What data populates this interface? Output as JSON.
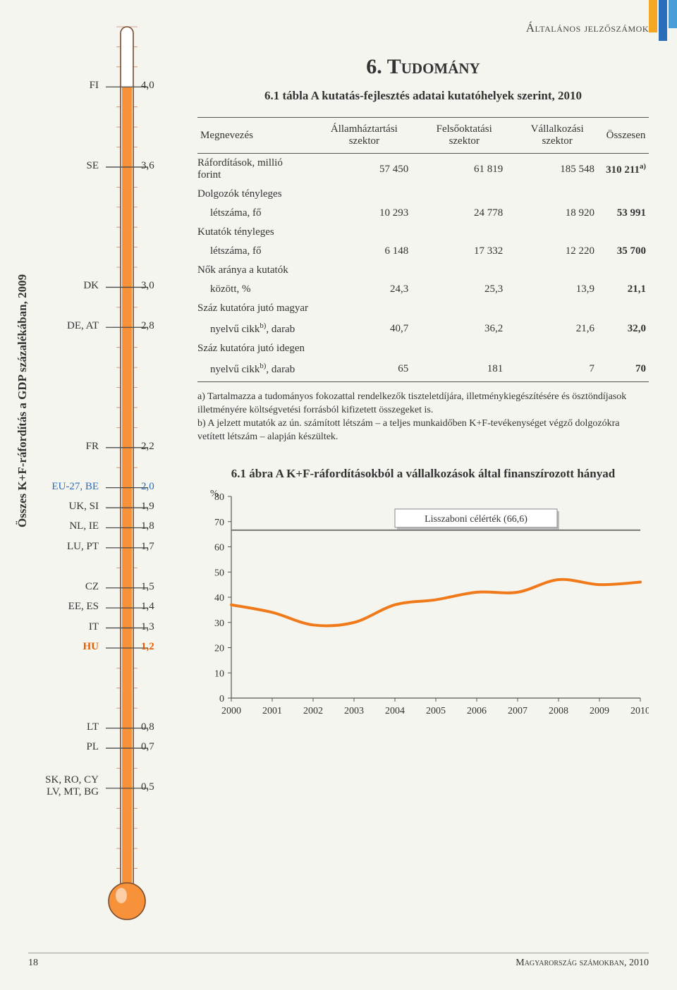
{
  "header": {
    "section_label": "Általános jelzőszámok",
    "chapter_title": "6. Tudomány",
    "table_caption": "6.1 tábla  A kutatás-fejlesztés adatai kutatóhelyek szerint, 2010"
  },
  "thermometer": {
    "axis_label": "Összes K+F-ráfordítás a GDP százalékában, 2009",
    "column_color": "#f7923b",
    "tick_color": "#c98a6b",
    "tube_stroke": "#7a4a2a",
    "min": 0,
    "max": 4.3,
    "items": [
      {
        "label": "FI",
        "value": "4,0",
        "v": 4.0
      },
      {
        "label": "SE",
        "value": "3,6",
        "v": 3.6
      },
      {
        "label": "DK",
        "value": "3,0",
        "v": 3.0
      },
      {
        "label": "DE, AT",
        "value": "2,8",
        "v": 2.8
      },
      {
        "label": "FR",
        "value": "2,2",
        "v": 2.2
      },
      {
        "label": "EU-27, BE",
        "value": "2,0",
        "v": 2.0,
        "style": "eu"
      },
      {
        "label": "UK, SI",
        "value": "1,9",
        "v": 1.9
      },
      {
        "label": "NL, IE",
        "value": "1,8",
        "v": 1.8
      },
      {
        "label": "LU, PT",
        "value": "1,7",
        "v": 1.7
      },
      {
        "label": "CZ",
        "value": "1,5",
        "v": 1.5
      },
      {
        "label": "EE, ES",
        "value": "1,4",
        "v": 1.4
      },
      {
        "label": "IT",
        "value": "1,3",
        "v": 1.3
      },
      {
        "label": "HU",
        "value": "1,2",
        "v": 1.2,
        "style": "highlight"
      },
      {
        "label": "LT",
        "value": "0,8",
        "v": 0.8
      },
      {
        "label": "PL",
        "value": "0,7",
        "v": 0.7
      },
      {
        "label": "SK, RO, CY\nLV, MT, BG",
        "value": "0,5",
        "v": 0.5
      }
    ]
  },
  "table": {
    "headers": [
      "Megnevezés",
      "Államháztar­tási szektor",
      "Felsőoktatási szektor",
      "Vállalkozási szektor",
      "Összesen"
    ],
    "rows": [
      {
        "label": "Ráfordítások, millió forint",
        "cells": [
          "57 450",
          "61 819",
          "185 548"
        ],
        "total": "310 211",
        "total_sup": "a)"
      },
      {
        "label": "Dolgozók tényleges",
        "sublabel": "létszáma, fő",
        "cells": [
          "10 293",
          "24 778",
          "18 920"
        ],
        "total": "53 991"
      },
      {
        "label": "Kutatók tényleges",
        "sublabel": "létszáma, fő",
        "cells": [
          "6 148",
          "17 332",
          "12 220"
        ],
        "total": "35 700"
      },
      {
        "label": "Nők aránya a kutatók",
        "sublabel": "között, %",
        "cells": [
          "24,3",
          "25,3",
          "13,9"
        ],
        "total": "21,1"
      },
      {
        "label": "Száz kutatóra jutó magyar",
        "sublabel": "nyelvű cikk",
        "sub_sup": "b)",
        "sub_after": ", darab",
        "cells": [
          "40,7",
          "36,2",
          "21,6"
        ],
        "total": "32,0"
      },
      {
        "label": "Száz kutatóra jutó idegen",
        "sublabel": "nyelvű cikk",
        "sub_sup": "b)",
        "sub_after": ", darab",
        "cells": [
          "65",
          "181",
          "7"
        ],
        "total": "70"
      }
    ]
  },
  "footnotes": {
    "a": "a) Tartalmazza a tudományos fokozattal rendelkezők tiszteletdíjára, illetménykiegészítésére és ösztöndíjasok illetményére költségvetési forrásból kifizetett összegeket is.",
    "b": "b) A jelzett mutatók az ún. számított létszám – a teljes munkaidőben K+F-tevékenységet végző dolgozókra vetített létszám – alapján készültek."
  },
  "chart": {
    "caption": "6.1 ábra  A K+F-ráfordításokból a vállalkozások által finanszírozott hányad",
    "y_label": "%",
    "x_ticks": [
      "2000",
      "2001",
      "2002",
      "2003",
      "2004",
      "2005",
      "2006",
      "2007",
      "2008",
      "2009",
      "2010"
    ],
    "y_min": 0,
    "y_max": 80,
    "y_step": 10,
    "line_color": "#f07a1a",
    "line_width": 4,
    "axis_color": "#555555",
    "target_label": "Lisszaboni célérték (66,6)",
    "target_value": 66.6,
    "target_box_fill": "#ffffff",
    "target_box_stroke": "#888888",
    "series": [
      37,
      34,
      29,
      30,
      37,
      39,
      42,
      42,
      47,
      45,
      46
    ]
  },
  "footer": {
    "page": "18",
    "source": "Magyarország számokban, 2010"
  },
  "corner": {
    "c1": "#f5a623",
    "c2": "#2a6db8",
    "c3": "#4a9ed8"
  }
}
